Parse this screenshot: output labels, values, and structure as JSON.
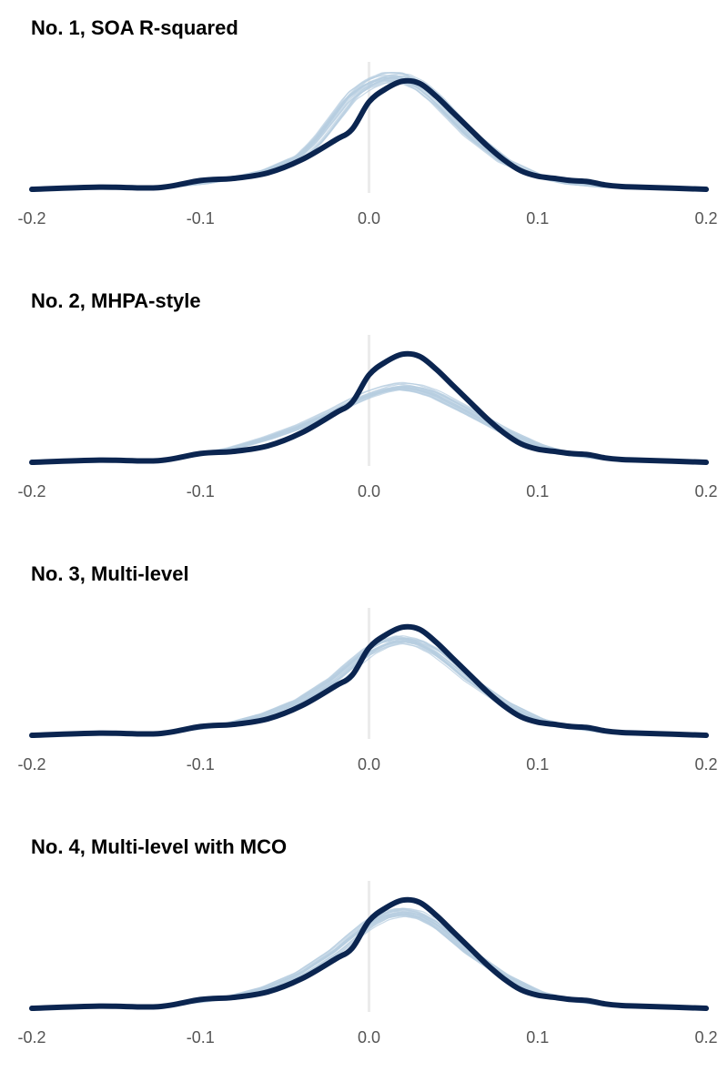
{
  "colors": {
    "observed": "#0b2550",
    "simulated": "#b7cde0",
    "zero_line": "#ebebeb",
    "tick_text": "#555555",
    "background": "#ffffff"
  },
  "chart_data": [
    {
      "type": "line",
      "title": "No. 1, SOA R-squared",
      "xlabel": "",
      "ylabel": "",
      "xlim": [
        -0.2,
        0.2
      ],
      "x_ticks": [
        "-0.2",
        "-0.1",
        "0.0",
        "0.1",
        "0.2"
      ],
      "x_tick_values": [
        -0.2,
        -0.1,
        0.0,
        0.1,
        0.2
      ],
      "y_axis_shown": false,
      "grid": false,
      "reference_line_x": 0.0,
      "series": [
        {
          "role": "observed",
          "x": [
            -0.2,
            -0.16,
            -0.125,
            -0.1,
            -0.08,
            -0.06,
            -0.04,
            -0.02,
            -0.01,
            0,
            0.01,
            0.02,
            0.03,
            0.04,
            0.05,
            0.06,
            0.07,
            0.08,
            0.09,
            0.1,
            0.11,
            0.12,
            0.13,
            0.14,
            0.15,
            0.16,
            0.18,
            0.2
          ],
          "y": [
            0,
            0.02,
            0.015,
            0.08,
            0.1,
            0.15,
            0.27,
            0.45,
            0.55,
            0.8,
            0.92,
            0.99,
            0.97,
            0.85,
            0.7,
            0.55,
            0.4,
            0.27,
            0.17,
            0.12,
            0.1,
            0.08,
            0.07,
            0.04,
            0.025,
            0.02,
            0.01,
            0
          ]
        },
        {
          "role": "simulated",
          "draws": 20,
          "x": [
            -0.2,
            -0.16,
            -0.12,
            -0.1,
            -0.08,
            -0.06,
            -0.04,
            -0.03,
            -0.02,
            -0.01,
            0,
            0.01,
            0.02,
            0.03,
            0.04,
            0.05,
            0.06,
            0.08,
            0.1,
            0.12,
            0.14,
            0.16,
            0.2
          ],
          "y": [
            0,
            0.005,
            0.02,
            0.05,
            0.1,
            0.17,
            0.3,
            0.45,
            0.65,
            0.85,
            0.96,
            1.02,
            1.02,
            0.95,
            0.82,
            0.66,
            0.5,
            0.26,
            0.12,
            0.05,
            0.02,
            0.01,
            0
          ]
        }
      ]
    },
    {
      "type": "line",
      "title": "No. 2, MHPA-style",
      "xlabel": "",
      "ylabel": "",
      "xlim": [
        -0.2,
        0.2
      ],
      "x_ticks": [
        "-0.2",
        "-0.1",
        "0.0",
        "0.1",
        "0.2"
      ],
      "x_tick_values": [
        -0.2,
        -0.1,
        0.0,
        0.1,
        0.2
      ],
      "y_axis_shown": false,
      "grid": false,
      "reference_line_x": 0.0,
      "series": [
        {
          "role": "observed",
          "x": [
            -0.2,
            -0.16,
            -0.125,
            -0.1,
            -0.08,
            -0.06,
            -0.04,
            -0.02,
            -0.01,
            0,
            0.01,
            0.02,
            0.03,
            0.04,
            0.05,
            0.06,
            0.07,
            0.08,
            0.09,
            0.1,
            0.11,
            0.12,
            0.13,
            0.14,
            0.15,
            0.16,
            0.18,
            0.2
          ],
          "y": [
            0,
            0.02,
            0.015,
            0.08,
            0.1,
            0.15,
            0.27,
            0.45,
            0.55,
            0.8,
            0.92,
            0.99,
            0.97,
            0.85,
            0.7,
            0.55,
            0.4,
            0.27,
            0.17,
            0.12,
            0.1,
            0.08,
            0.07,
            0.04,
            0.025,
            0.02,
            0.01,
            0
          ]
        },
        {
          "role": "simulated",
          "draws": 20,
          "x": [
            -0.2,
            -0.16,
            -0.12,
            -0.1,
            -0.08,
            -0.06,
            -0.04,
            -0.02,
            -0.01,
            0,
            0.01,
            0.02,
            0.03,
            0.04,
            0.05,
            0.06,
            0.08,
            0.1,
            0.12,
            0.14,
            0.16,
            0.2
          ],
          "y": [
            0,
            0.01,
            0.03,
            0.07,
            0.13,
            0.22,
            0.33,
            0.47,
            0.55,
            0.62,
            0.67,
            0.7,
            0.68,
            0.63,
            0.55,
            0.47,
            0.3,
            0.16,
            0.07,
            0.03,
            0.01,
            0
          ]
        }
      ]
    },
    {
      "type": "line",
      "title": "No. 3, Multi-level",
      "xlabel": "",
      "ylabel": "",
      "xlim": [
        -0.2,
        0.2
      ],
      "x_ticks": [
        "-0.2",
        "-0.1",
        "0.0",
        "0.1",
        "0.2"
      ],
      "x_tick_values": [
        -0.2,
        -0.1,
        0.0,
        0.1,
        0.2
      ],
      "y_axis_shown": false,
      "grid": false,
      "reference_line_x": 0.0,
      "series": [
        {
          "role": "observed",
          "x": [
            -0.2,
            -0.16,
            -0.125,
            -0.1,
            -0.08,
            -0.06,
            -0.04,
            -0.02,
            -0.01,
            0,
            0.01,
            0.02,
            0.03,
            0.04,
            0.05,
            0.06,
            0.07,
            0.08,
            0.09,
            0.1,
            0.11,
            0.12,
            0.13,
            0.14,
            0.15,
            0.16,
            0.18,
            0.2
          ],
          "y": [
            0,
            0.02,
            0.015,
            0.08,
            0.1,
            0.15,
            0.27,
            0.45,
            0.55,
            0.8,
            0.92,
            0.99,
            0.97,
            0.85,
            0.7,
            0.55,
            0.4,
            0.27,
            0.17,
            0.12,
            0.1,
            0.08,
            0.07,
            0.04,
            0.025,
            0.02,
            0.01,
            0
          ]
        },
        {
          "role": "simulated",
          "draws": 20,
          "x": [
            -0.2,
            -0.16,
            -0.12,
            -0.1,
            -0.08,
            -0.06,
            -0.04,
            -0.02,
            -0.01,
            0,
            0.01,
            0.02,
            0.03,
            0.04,
            0.05,
            0.06,
            0.08,
            0.1,
            0.12,
            0.14,
            0.16,
            0.2
          ],
          "y": [
            0,
            0.01,
            0.03,
            0.06,
            0.11,
            0.19,
            0.31,
            0.5,
            0.63,
            0.75,
            0.83,
            0.87,
            0.84,
            0.76,
            0.64,
            0.51,
            0.3,
            0.15,
            0.07,
            0.03,
            0.01,
            0
          ]
        }
      ]
    },
    {
      "type": "line",
      "title": "No. 4, Multi-level with MCO",
      "xlabel": "",
      "ylabel": "",
      "xlim": [
        -0.2,
        0.2
      ],
      "x_ticks": [
        "-0.2",
        "-0.1",
        "0.0",
        "0.1",
        "0.2"
      ],
      "x_tick_values": [
        -0.2,
        -0.1,
        0.0,
        0.1,
        0.2
      ],
      "y_axis_shown": false,
      "grid": false,
      "reference_line_x": 0.0,
      "series": [
        {
          "role": "observed",
          "x": [
            -0.2,
            -0.16,
            -0.125,
            -0.1,
            -0.08,
            -0.06,
            -0.04,
            -0.02,
            -0.01,
            0,
            0.01,
            0.02,
            0.03,
            0.04,
            0.05,
            0.06,
            0.07,
            0.08,
            0.09,
            0.1,
            0.11,
            0.12,
            0.13,
            0.14,
            0.15,
            0.16,
            0.18,
            0.2
          ],
          "y": [
            0,
            0.02,
            0.015,
            0.08,
            0.1,
            0.15,
            0.27,
            0.45,
            0.55,
            0.8,
            0.92,
            0.99,
            0.97,
            0.85,
            0.7,
            0.55,
            0.4,
            0.27,
            0.17,
            0.12,
            0.1,
            0.08,
            0.07,
            0.04,
            0.025,
            0.02,
            0.01,
            0
          ]
        },
        {
          "role": "simulated",
          "draws": 20,
          "x": [
            -0.2,
            -0.16,
            -0.12,
            -0.1,
            -0.08,
            -0.06,
            -0.04,
            -0.02,
            -0.01,
            0,
            0.01,
            0.02,
            0.03,
            0.04,
            0.05,
            0.06,
            0.08,
            0.1,
            0.12,
            0.14,
            0.16,
            0.2
          ],
          "y": [
            0,
            0.01,
            0.03,
            0.06,
            0.11,
            0.19,
            0.32,
            0.52,
            0.65,
            0.77,
            0.85,
            0.88,
            0.85,
            0.77,
            0.64,
            0.51,
            0.3,
            0.15,
            0.07,
            0.03,
            0.01,
            0
          ]
        }
      ]
    }
  ]
}
